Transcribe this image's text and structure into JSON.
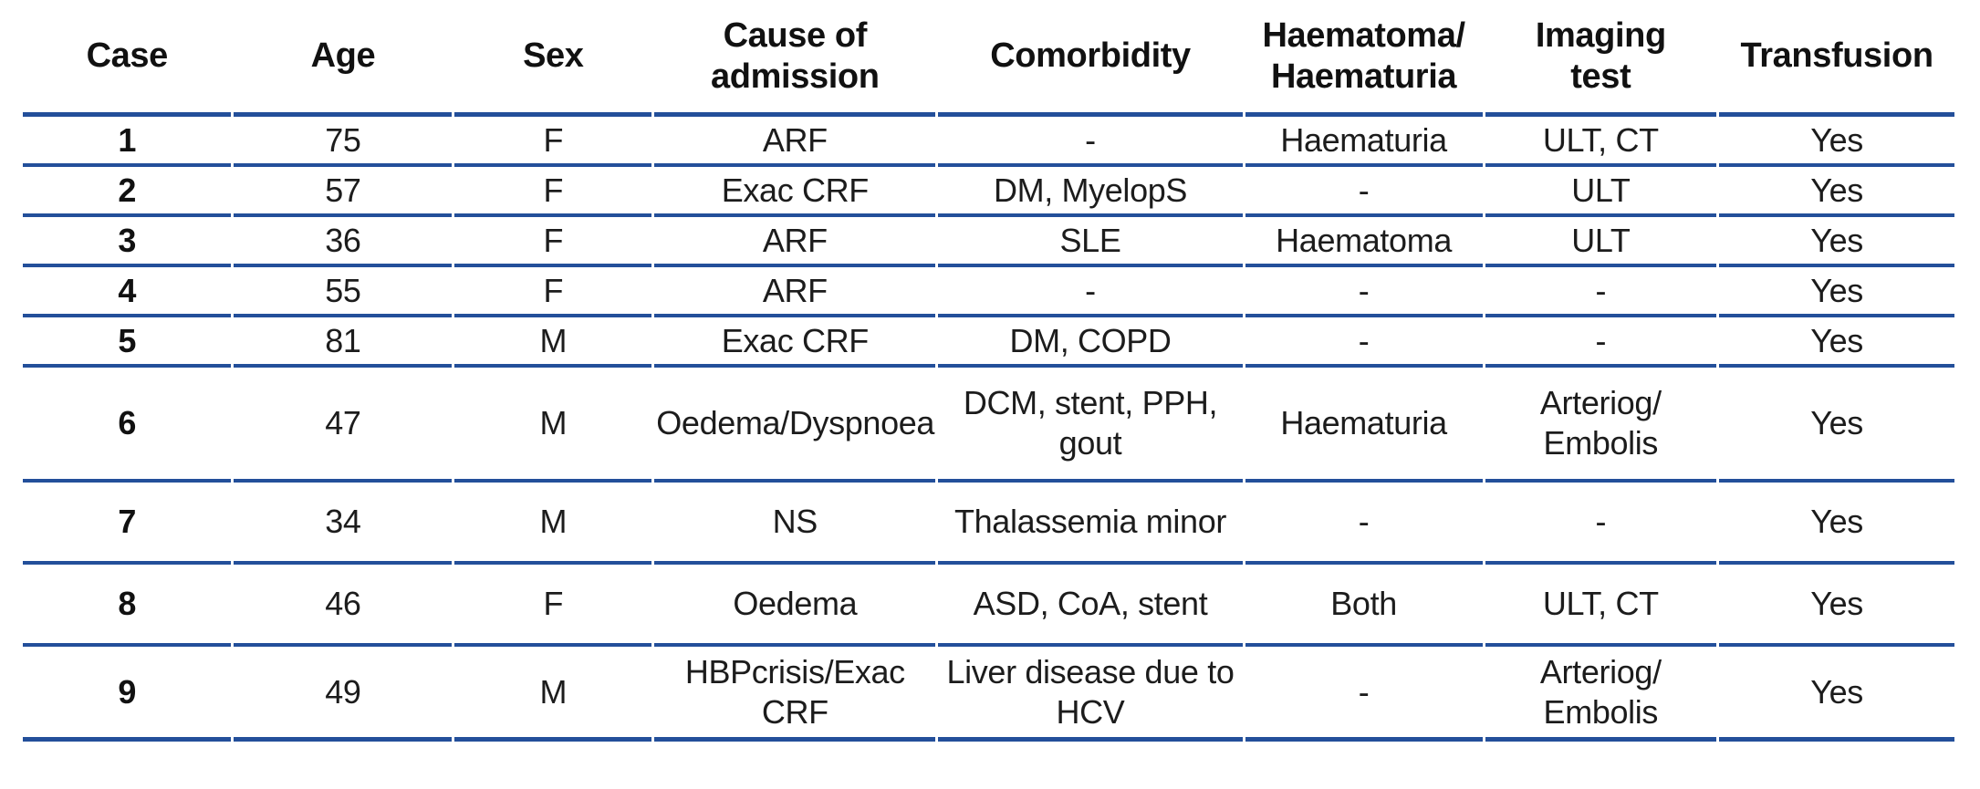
{
  "colors": {
    "rule_line": "#234F9A",
    "text": "#1C1C1C",
    "background": "#FFFFFF"
  },
  "table": {
    "columns": [
      {
        "key": "case",
        "label": "Case"
      },
      {
        "key": "age",
        "label": "Age"
      },
      {
        "key": "sex",
        "label": "Sex"
      },
      {
        "key": "cause_of_admission",
        "label": "Cause of\nadmission"
      },
      {
        "key": "comorbidity",
        "label": "Comorbidity"
      },
      {
        "key": "haematoma_haematuria",
        "label": "Haematoma/\nHaematuria"
      },
      {
        "key": "imaging_test",
        "label": "Imaging\ntest"
      },
      {
        "key": "transfusion",
        "label": "Transfusion"
      }
    ],
    "rows": [
      [
        "1",
        "75",
        "F",
        "ARF",
        "-",
        "Haematuria",
        "ULT, CT",
        "Yes"
      ],
      [
        "2",
        "57",
        "F",
        "Exac CRF",
        "DM, MyelopS",
        "-",
        "ULT",
        "Yes"
      ],
      [
        "3",
        "36",
        "F",
        "ARF",
        "SLE",
        "Haematoma",
        "ULT",
        "Yes"
      ],
      [
        "4",
        "55",
        "F",
        "ARF",
        "-",
        "-",
        "-",
        "Yes"
      ],
      [
        "5",
        "81",
        "M",
        "Exac CRF",
        "DM, COPD",
        "-",
        "-",
        "Yes"
      ],
      [
        "6",
        "47",
        "M",
        "Oedema/Dyspnoea",
        "DCM, stent, PPH,\ngout",
        "Haematuria",
        "Arteriog/\nEmbolis",
        "Yes"
      ],
      [
        "7",
        "34",
        "M",
        "NS",
        "Thalassemia minor",
        "-",
        "-",
        "Yes"
      ],
      [
        "8",
        "46",
        "F",
        "Oedema",
        "ASD, CoA, stent",
        "Both",
        "ULT, CT",
        "Yes"
      ],
      [
        "9",
        "49",
        "M",
        "HBPcrisis/Exac CRF",
        "Liver disease due to\nHCV",
        "-",
        "Arteriog/\nEmbolis",
        "Yes"
      ]
    ]
  }
}
